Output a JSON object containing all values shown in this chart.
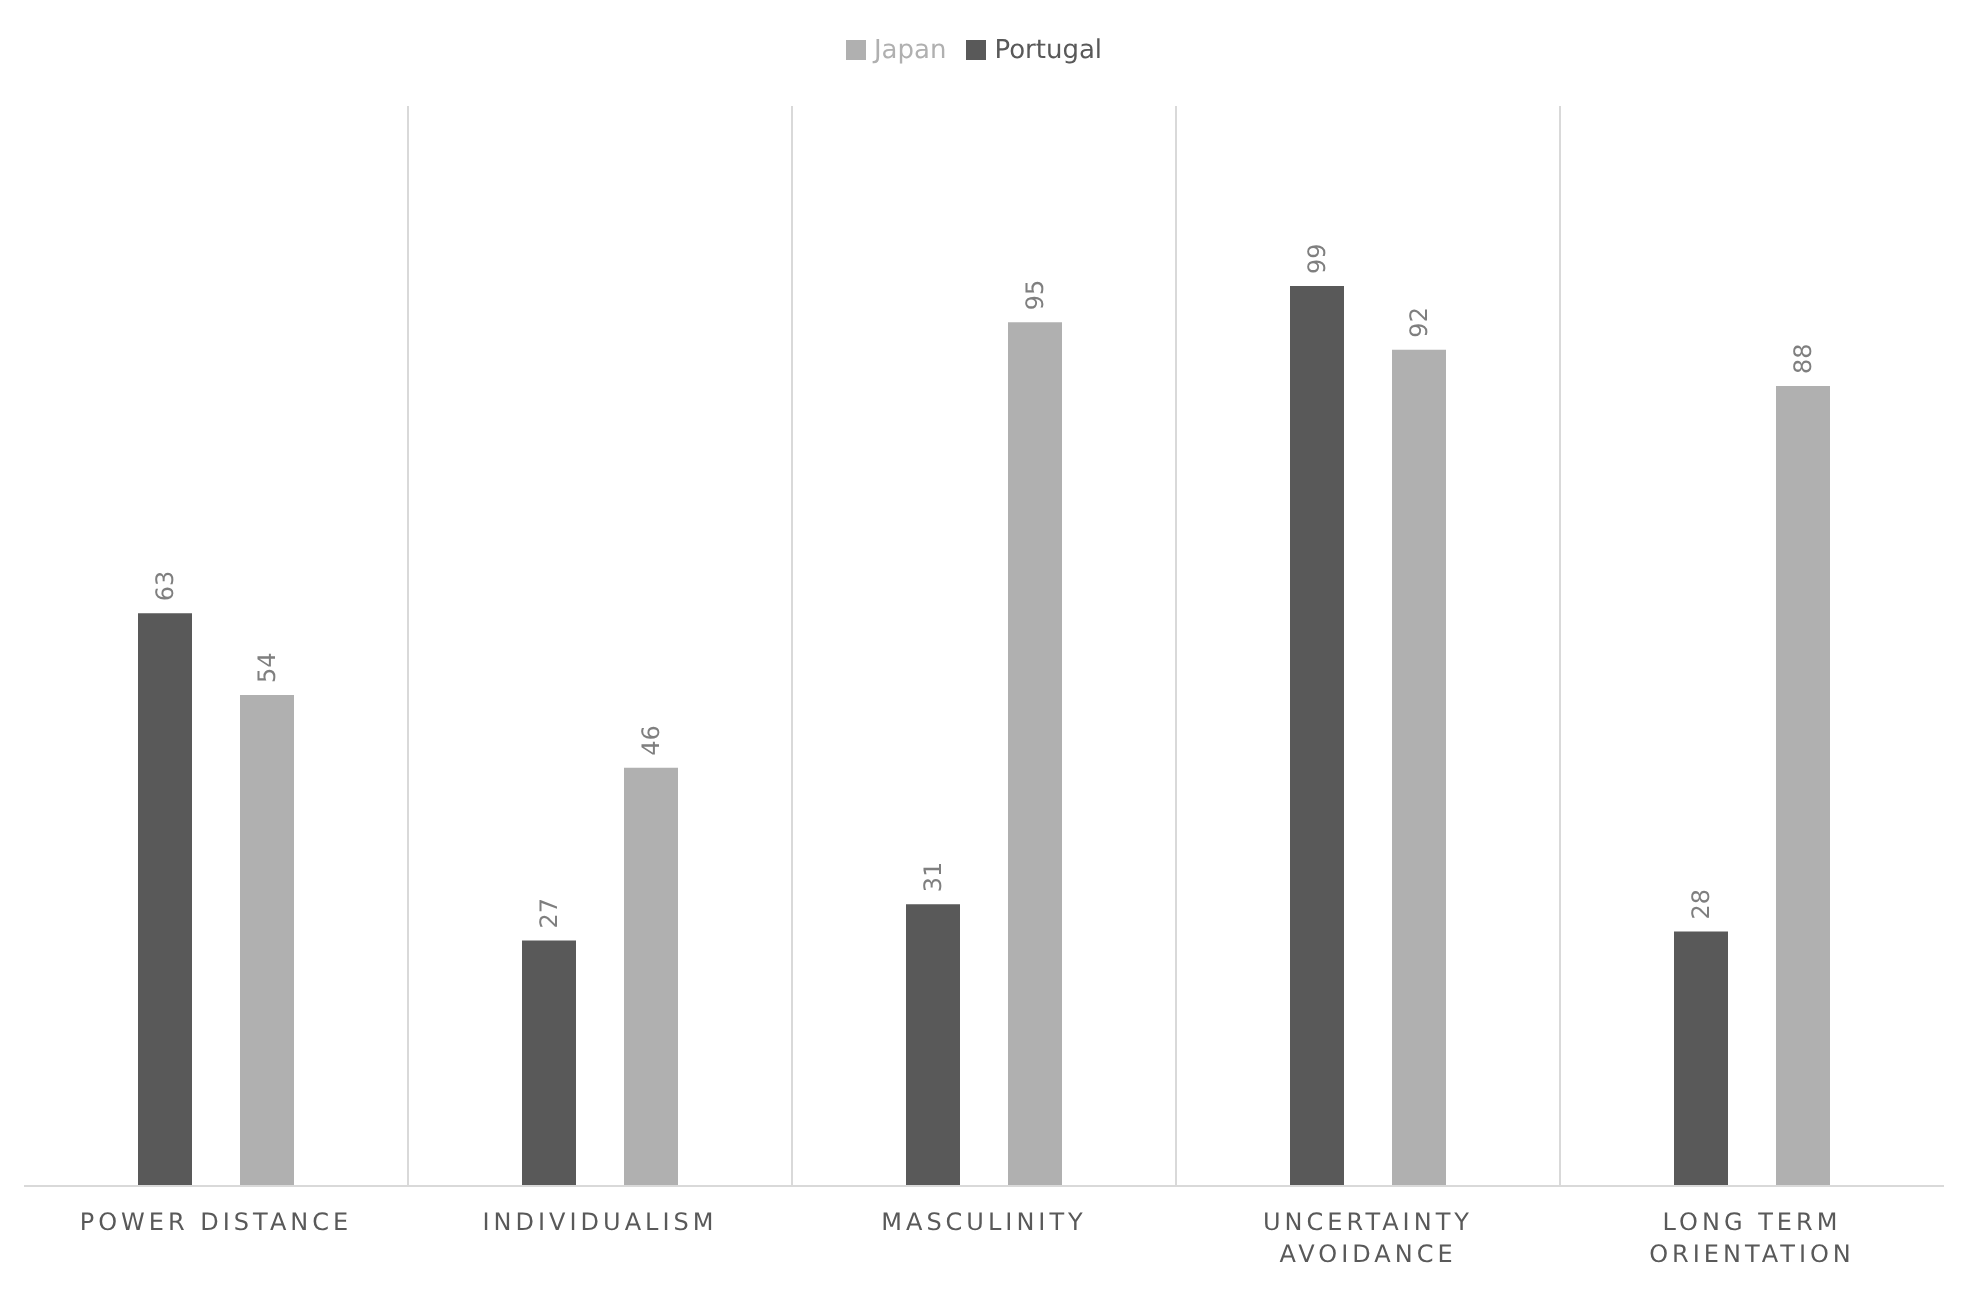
{
  "chart_data": {
    "type": "bar",
    "categories": [
      "POWER DISTANCE",
      "INDIVIDUALISM",
      "MASCULINITY",
      "UNCERTAINTY AVOIDANCE",
      "LONG TERM ORIENTATION"
    ],
    "series": [
      {
        "name": "Portugal",
        "color": "#595959",
        "values": [
          63,
          27,
          31,
          99,
          28
        ]
      },
      {
        "name": "Japan",
        "color": "#b0b0b0",
        "values": [
          54,
          46,
          95,
          92,
          88
        ]
      }
    ],
    "data_labels": true,
    "grid": "x",
    "legend": "top"
  }
}
